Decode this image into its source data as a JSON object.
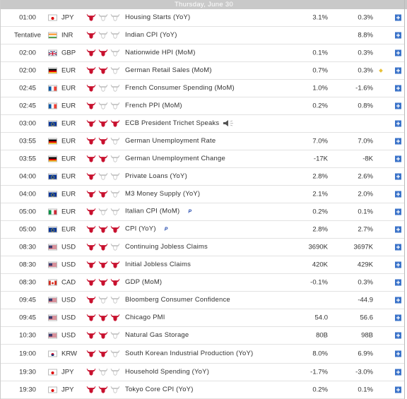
{
  "header": {
    "date": "Thursday, June 30"
  },
  "rows": [
    {
      "time": "01:00",
      "currency": "JPY",
      "importance": 1,
      "event": "Housing Starts (YoY)",
      "actual": "3.1%",
      "forecast": "0.3%"
    },
    {
      "time": "Tentative",
      "currency": "INR",
      "importance": 1,
      "event": "Indian CPI (YoY)",
      "actual": null,
      "forecast": "8.8%"
    },
    {
      "time": "02:00",
      "currency": "GBP",
      "importance": 2,
      "event": "Nationwide HPI (MoM)",
      "actual": "0.1%",
      "forecast": "0.3%"
    },
    {
      "time": "02:00",
      "currency": "EUR",
      "importance": 2,
      "event": "German Retail Sales (MoM)",
      "actual": "0.7%",
      "forecast": "0.3%"
    },
    {
      "time": "02:45",
      "currency": "EUR",
      "importance": 1,
      "event": "French Consumer Spending (MoM)",
      "actual": "1.0%",
      "forecast": "-1.6%"
    },
    {
      "time": "02:45",
      "currency": "EUR",
      "importance": 1,
      "event": "French PPI (MoM)",
      "actual": "0.2%",
      "forecast": "0.8%"
    },
    {
      "time": "03:00",
      "currency": "EUR",
      "importance": 3,
      "event": "ECB President Trichet Speaks",
      "actual": null,
      "forecast": null
    },
    {
      "time": "03:55",
      "currency": "EUR",
      "importance": 2,
      "event": "German Unemployment Rate",
      "actual": "7.0%",
      "forecast": "7.0%"
    },
    {
      "time": "03:55",
      "currency": "EUR",
      "importance": 2,
      "event": "German Unemployment Change",
      "actual": "-17K",
      "forecast": "-8K"
    },
    {
      "time": "04:00",
      "currency": "EUR",
      "importance": 1,
      "event": "Private Loans (YoY)",
      "actual": "2.8%",
      "forecast": "2.6%"
    },
    {
      "time": "04:00",
      "currency": "EUR",
      "importance": 2,
      "event": "M3 Money Supply (YoY)",
      "actual": "2.1%",
      "forecast": "2.0%"
    },
    {
      "time": "05:00",
      "currency": "EUR",
      "importance": 1,
      "event": "Italian CPI (MoM)",
      "note": "P",
      "actual": "0.2%",
      "forecast": "0.1%"
    },
    {
      "time": "05:00",
      "currency": "EUR",
      "importance": 3,
      "event": "CPI (YoY)",
      "note": "P",
      "actual": "2.8%",
      "forecast": "2.7%"
    },
    {
      "time": "08:30",
      "currency": "USD",
      "importance": 2,
      "event": "Continuing Jobless Claims",
      "actual": "3690K",
      "forecast": "3697K"
    },
    {
      "time": "08:30",
      "currency": "USD",
      "importance": 3,
      "event": "Initial Jobless Claims",
      "actual": "420K",
      "forecast": "429K"
    },
    {
      "time": "08:30",
      "currency": "CAD",
      "importance": 3,
      "event": "GDP (MoM)",
      "actual": "-0.1%",
      "forecast": "0.3%"
    },
    {
      "time": "09:45",
      "currency": "USD",
      "importance": 1,
      "event": "Bloomberg Consumer Confidence",
      "actual": null,
      "forecast": "-44.9"
    },
    {
      "time": "09:45",
      "currency": "USD",
      "importance": 3,
      "event": "Chicago PMI",
      "actual": "54.0",
      "forecast": "56.6"
    },
    {
      "time": "10:30",
      "currency": "USD",
      "importance": 2,
      "event": "Natural Gas Storage",
      "actual": "80B",
      "forecast": "98B"
    },
    {
      "time": "19:00",
      "currency": "KRW",
      "importance": 2,
      "event": "South Korean Industrial Production (YoY)",
      "actual": "8.0%",
      "forecast": "6.9%"
    },
    {
      "time": "19:30",
      "currency": "JPY",
      "importance": 1,
      "event": "Household Spending (YoY)",
      "actual": "-1.7%",
      "forecast": "-3.0%"
    },
    {
      "time": "19:30",
      "currency": "JPY",
      "importance": 2,
      "event": "Tokyo Core CPI (YoY)",
      "actual": "0.2%",
      "forecast": "0.1%"
    }
  ]
}
